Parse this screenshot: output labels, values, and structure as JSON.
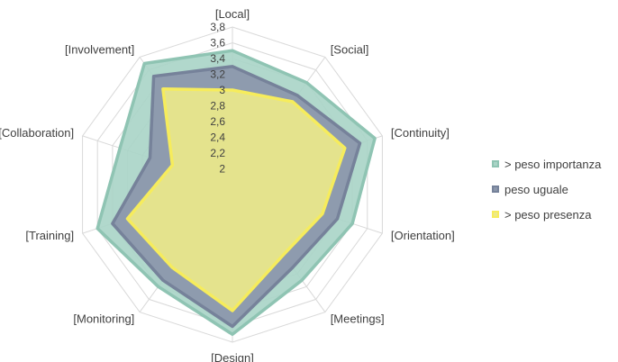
{
  "chart_data": {
    "type": "radar",
    "title": "",
    "axes": [
      "[Local]",
      "[Social]",
      "[Continuity]",
      "[Orientation]",
      "[Meetings]",
      "[Design]",
      "[Monitoring]",
      "[Training]",
      "[Collaboration]",
      "[Involvement]"
    ],
    "rlim": [
      1.8,
      3.8
    ],
    "ticks": [
      "2",
      "2,2",
      "2,4",
      "2,6",
      "2,8",
      "3",
      "3,2",
      "3,4",
      "3,6",
      "3,8"
    ],
    "grid": true,
    "legend_position": "right",
    "series": [
      {
        "name": "> peso importanza",
        "values": [
          3.5,
          3.4,
          3.7,
          3.4,
          3.3,
          3.7,
          3.4,
          3.6,
          3.3,
          3.7
        ],
        "fill": "#a9d4c6",
        "stroke": "#8fc4b3"
      },
      {
        "name": "peso uguale",
        "values": [
          3.3,
          3.2,
          3.5,
          3.2,
          3.1,
          3.6,
          3.3,
          3.4,
          2.9,
          3.5
        ],
        "fill": "#8b96ab",
        "stroke": "#76829a"
      },
      {
        "name": "> peso presenza",
        "values": [
          3.0,
          3.1,
          3.3,
          3.0,
          2.9,
          3.4,
          3.1,
          3.2,
          2.6,
          3.3
        ],
        "fill": "#ece98a",
        "stroke": "#f6ec5c"
      }
    ]
  }
}
